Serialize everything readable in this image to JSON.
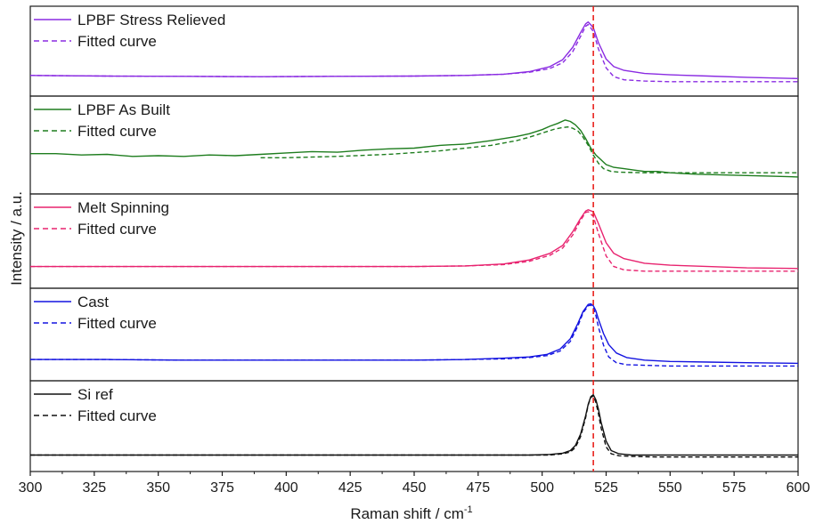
{
  "chart_data": {
    "type": "line",
    "xlabel": "Raman shift / cm",
    "xlabel_superscript": "-1",
    "ylabel": "Intensity / a.u.",
    "xlim": [
      300,
      600
    ],
    "x_ticks": [
      300,
      325,
      350,
      375,
      400,
      425,
      450,
      475,
      500,
      525,
      550,
      575,
      600
    ],
    "reference_line": {
      "x": 520,
      "color": "#e8221d",
      "style": "dashed"
    },
    "legend_placement": "top-left",
    "grid": false,
    "panels": [
      {
        "series": [
          {
            "name": "LPBF Stress Relieved",
            "style": "solid",
            "color": "#8a2be2",
            "x": [
              300,
              330,
              360,
              390,
              420,
              450,
              470,
              485,
              495,
              503,
              508,
              512,
              515,
              517,
              518,
              520,
              522,
              525,
              528,
              532,
              540,
              550,
              565,
              580,
              600
            ],
            "y": [
              0.1,
              0.09,
              0.085,
              0.08,
              0.085,
              0.09,
              0.1,
              0.12,
              0.16,
              0.24,
              0.35,
              0.55,
              0.78,
              0.92,
              0.95,
              0.86,
              0.62,
              0.36,
              0.24,
              0.18,
              0.13,
              0.11,
              0.09,
              0.07,
              0.05
            ]
          },
          {
            "name": "Fitted curve",
            "style": "dashed",
            "color": "#8a2be2",
            "x": [
              300,
              330,
              360,
              390,
              420,
              450,
              470,
              485,
              495,
              503,
              508,
              512,
              515,
              517,
              518,
              520,
              522,
              525,
              528,
              532,
              540,
              550,
              565,
              580,
              600
            ],
            "y": [
              0.1,
              0.09,
              0.085,
              0.08,
              0.085,
              0.09,
              0.1,
              0.12,
              0.15,
              0.21,
              0.3,
              0.48,
              0.72,
              0.88,
              0.91,
              0.8,
              0.52,
              0.22,
              0.08,
              0.03,
              0.01,
              0.0,
              0.0,
              0.0,
              0.0
            ]
          }
        ]
      },
      {
        "series": [
          {
            "name": "LPBF As Built",
            "style": "solid",
            "color": "#1e7d1e",
            "x": [
              300,
              310,
              320,
              330,
              340,
              350,
              360,
              370,
              380,
              390,
              400,
              410,
              420,
              430,
              440,
              450,
              460,
              470,
              480,
              490,
              495,
              500,
              503,
              506,
              509,
              511,
              513,
              515,
              517,
              519,
              521,
              523,
              525,
              528,
              532,
              536,
              540,
              545,
              550,
              560,
              570,
              580,
              590,
              600
            ],
            "y": [
              0.36,
              0.36,
              0.34,
              0.35,
              0.32,
              0.33,
              0.32,
              0.34,
              0.33,
              0.35,
              0.37,
              0.39,
              0.38,
              0.41,
              0.43,
              0.44,
              0.48,
              0.5,
              0.55,
              0.61,
              0.65,
              0.71,
              0.76,
              0.8,
              0.85,
              0.83,
              0.78,
              0.7,
              0.58,
              0.44,
              0.34,
              0.27,
              0.2,
              0.16,
              0.14,
              0.12,
              0.1,
              0.1,
              0.08,
              0.06,
              0.05,
              0.04,
              0.03,
              0.02
            ]
          },
          {
            "name": "Fitted curve",
            "style": "dashed",
            "color": "#1e7d1e",
            "x": [
              390,
              400,
              420,
              440,
              460,
              480,
              490,
              495,
              500,
              505,
              508,
              510,
              512,
              514,
              516,
              518,
              520,
              522,
              524,
              527,
              530,
              540,
              550,
              570,
              600
            ],
            "y": [
              0.3,
              0.3,
              0.32,
              0.35,
              0.4,
              0.48,
              0.55,
              0.6,
              0.66,
              0.72,
              0.74,
              0.75,
              0.73,
              0.69,
              0.6,
              0.48,
              0.34,
              0.22,
              0.14,
              0.1,
              0.09,
              0.08,
              0.08,
              0.08,
              0.08
            ]
          }
        ]
      },
      {
        "series": [
          {
            "name": "Melt Spinning",
            "style": "solid",
            "color": "#e8236f",
            "x": [
              300,
              330,
              360,
              390,
              420,
              450,
              470,
              485,
              495,
              503,
              508,
              512,
              515,
              517,
              518,
              520,
              522,
              525,
              528,
              532,
              540,
              550,
              565,
              580,
              600
            ],
            "y": [
              0.1,
              0.1,
              0.1,
              0.1,
              0.1,
              0.1,
              0.11,
              0.14,
              0.2,
              0.3,
              0.42,
              0.63,
              0.83,
              0.94,
              0.96,
              0.93,
              0.75,
              0.46,
              0.3,
              0.22,
              0.15,
              0.12,
              0.1,
              0.08,
              0.07
            ]
          },
          {
            "name": "Fitted curve",
            "style": "dashed",
            "color": "#e8236f",
            "x": [
              300,
              330,
              360,
              390,
              420,
              450,
              470,
              485,
              495,
              503,
              508,
              512,
              515,
              517,
              518,
              520,
              522,
              525,
              528,
              532,
              540,
              550,
              565,
              580,
              600
            ],
            "y": [
              0.1,
              0.1,
              0.1,
              0.1,
              0.1,
              0.1,
              0.11,
              0.13,
              0.18,
              0.27,
              0.38,
              0.58,
              0.8,
              0.92,
              0.93,
              0.86,
              0.6,
              0.26,
              0.1,
              0.05,
              0.03,
              0.03,
              0.03,
              0.03,
              0.03
            ]
          }
        ]
      },
      {
        "series": [
          {
            "name": "Cast",
            "style": "solid",
            "color": "#1313e0",
            "x": [
              300,
              330,
              360,
              390,
              420,
              450,
              470,
              485,
              495,
              502,
              507,
              511,
              514,
              516,
              518,
              519,
              520,
              521,
              522,
              524,
              526,
              529,
              533,
              540,
              550,
              565,
              580,
              600
            ],
            "y": [
              0.1,
              0.1,
              0.09,
              0.09,
              0.09,
              0.09,
              0.1,
              0.12,
              0.14,
              0.18,
              0.26,
              0.42,
              0.66,
              0.84,
              0.95,
              0.96,
              0.93,
              0.85,
              0.72,
              0.5,
              0.33,
              0.2,
              0.13,
              0.09,
              0.07,
              0.06,
              0.05,
              0.04
            ]
          },
          {
            "name": "Fitted curve",
            "style": "dashed",
            "color": "#1313e0",
            "x": [
              300,
              330,
              360,
              390,
              420,
              450,
              470,
              485,
              495,
              502,
              507,
              511,
              514,
              516,
              518,
              519,
              520,
              521,
              522,
              524,
              526,
              529,
              533,
              540,
              550,
              565,
              580,
              600
            ],
            "y": [
              0.1,
              0.1,
              0.09,
              0.09,
              0.09,
              0.09,
              0.1,
              0.11,
              0.13,
              0.16,
              0.23,
              0.38,
              0.62,
              0.82,
              0.93,
              0.94,
              0.9,
              0.78,
              0.6,
              0.32,
              0.14,
              0.05,
              0.02,
              0.01,
              0.0,
              0.0,
              0.0,
              0.0
            ]
          }
        ]
      },
      {
        "series": [
          {
            "name": "Si ref",
            "style": "solid",
            "color": "#111111",
            "x": [
              300,
              330,
              360,
              390,
              420,
              450,
              470,
              485,
              495,
              503,
              508,
              511,
              513,
              515,
              517,
              518,
              519,
              520,
              521,
              522,
              523,
              525,
              527,
              530,
              535,
              545,
              560,
              580,
              600
            ],
            "y": [
              0.03,
              0.03,
              0.03,
              0.03,
              0.03,
              0.03,
              0.03,
              0.03,
              0.03,
              0.04,
              0.06,
              0.1,
              0.18,
              0.36,
              0.65,
              0.83,
              0.95,
              0.98,
              0.9,
              0.75,
              0.55,
              0.25,
              0.1,
              0.05,
              0.03,
              0.03,
              0.03,
              0.03,
              0.03
            ]
          },
          {
            "name": "Fitted curve",
            "style": "dashed",
            "color": "#111111",
            "x": [
              300,
              330,
              360,
              390,
              420,
              450,
              470,
              485,
              495,
              503,
              508,
              511,
              513,
              515,
              517,
              518,
              519,
              520,
              521,
              522,
              523,
              525,
              527,
              530,
              535,
              545,
              560,
              580,
              600
            ],
            "y": [
              0.03,
              0.03,
              0.03,
              0.03,
              0.03,
              0.03,
              0.03,
              0.03,
              0.03,
              0.03,
              0.05,
              0.08,
              0.15,
              0.32,
              0.62,
              0.82,
              0.94,
              0.96,
              0.86,
              0.68,
              0.46,
              0.16,
              0.05,
              0.02,
              0.01,
              0.0,
              0.0,
              0.0,
              0.0
            ]
          }
        ]
      }
    ]
  }
}
